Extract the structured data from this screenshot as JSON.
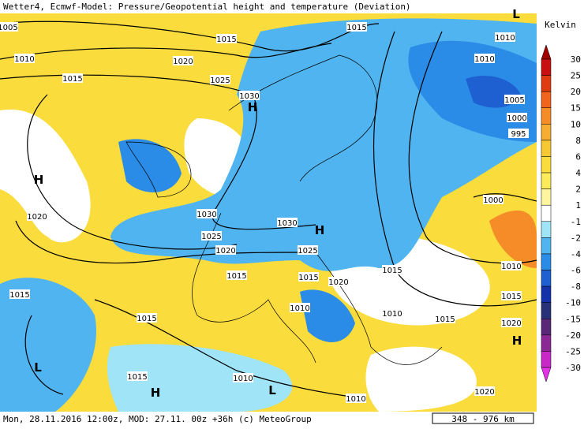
{
  "header": {
    "title": "Wetter4, Ecmwf-Model: Pressure/Geopotential height and temperature (Deviation)"
  },
  "footer": {
    "text": "Mon, 28.11.2016 12:00z, MOD: 27.11. 00z +36h (c) MeteoGroup",
    "scale": "348 - 976 km"
  },
  "legend": {
    "unit": "Kelvin",
    "labels": [
      30,
      25,
      20,
      15,
      10,
      8,
      6,
      4,
      2,
      1,
      -1,
      -2,
      -4,
      -6,
      -8,
      -10,
      -15,
      -20,
      -25,
      -30
    ],
    "colors": [
      "#a00000",
      "#c81010",
      "#e03a10",
      "#f0641e",
      "#f58c28",
      "#f7ad32",
      "#f8c832",
      "#fadc3c",
      "#fbeb5a",
      "#fff5a0",
      "#ffffff",
      "#a0e4f8",
      "#50b4f0",
      "#2a8ce6",
      "#1e5fd2",
      "#1432aa",
      "#283278",
      "#5a2878",
      "#8c2896",
      "#c828c8",
      "#e632e6"
    ]
  },
  "map": {
    "isobar_labels": [
      "1005",
      "1015",
      "1010",
      "1015",
      "1010",
      "1020",
      "1010",
      "1015",
      "1025",
      "1030",
      "1005",
      "1000",
      "995",
      "1000",
      "1020",
      "1030",
      "1030",
      "1025",
      "1020",
      "1025",
      "1015",
      "1015",
      "1020",
      "1015",
      "1010",
      "1015",
      "1015",
      "1010",
      "1010",
      "1015",
      "1015",
      "1020",
      "1015",
      "1010",
      "1010",
      "1020"
    ],
    "pressure_centers": [
      "H",
      "H",
      "H",
      "H",
      "H",
      "L",
      "L",
      "L"
    ]
  }
}
